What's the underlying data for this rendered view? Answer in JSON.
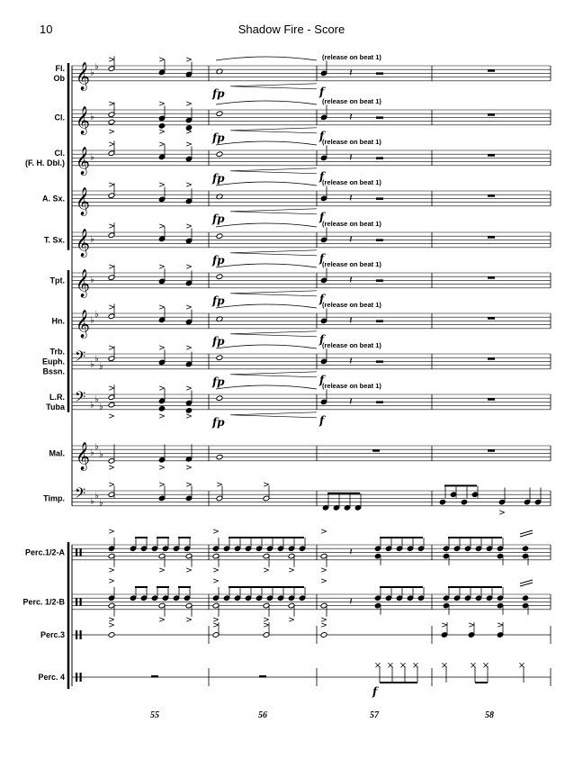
{
  "header": {
    "page_number": "10",
    "title": "Shadow Fire - Score"
  },
  "instruments": [
    {
      "id": "fl-ob",
      "lines": [
        "Fl.",
        "Ob"
      ],
      "clef": "treble",
      "flats": 2
    },
    {
      "id": "cl",
      "lines": [
        "Cl."
      ],
      "clef": "treble",
      "flats": 1
    },
    {
      "id": "cl-fh",
      "lines": [
        "Cl.",
        "(F. H. Dbl.)"
      ],
      "clef": "treble",
      "flats": 1
    },
    {
      "id": "asx",
      "lines": [
        "A. Sx."
      ],
      "clef": "treble",
      "flats": 0
    },
    {
      "id": "tsx",
      "lines": [
        "T. Sx."
      ],
      "clef": "treble",
      "flats": 1
    },
    {
      "id": "tpt",
      "lines": [
        "Tpt."
      ],
      "clef": "treble",
      "flats": 1
    },
    {
      "id": "hn",
      "lines": [
        "Hn."
      ],
      "clef": "treble",
      "flats": 2
    },
    {
      "id": "trb",
      "lines": [
        "Trb.",
        "Euph.",
        "Bssn."
      ],
      "clef": "bass",
      "flats": 3
    },
    {
      "id": "lr",
      "lines": [
        "L.R.",
        "Tuba"
      ],
      "clef": "bass",
      "flats": 3
    },
    {
      "id": "mal",
      "lines": [
        "Mal."
      ],
      "clef": "treble",
      "flats": 3
    },
    {
      "id": "timp",
      "lines": [
        "Timp."
      ],
      "clef": "bass",
      "flats": 3
    },
    {
      "id": "perc12a",
      "lines": [
        "Perc.1/2-A"
      ],
      "clef": "perc",
      "flats": 0
    },
    {
      "id": "perc12b",
      "lines": [
        "Perc. 1/2-B"
      ],
      "clef": "perc",
      "flats": 0
    },
    {
      "id": "perc3",
      "lines": [
        "Perc.3"
      ],
      "clef": "perc",
      "flats": 0
    },
    {
      "id": "perc4",
      "lines": [
        "Perc. 4"
      ],
      "clef": "perc",
      "flats": 0
    }
  ],
  "annotations": {
    "release": "(release on beat 1)",
    "fp": "fp",
    "f": "f"
  },
  "measures": [
    "55",
    "56",
    "57",
    "58"
  ]
}
